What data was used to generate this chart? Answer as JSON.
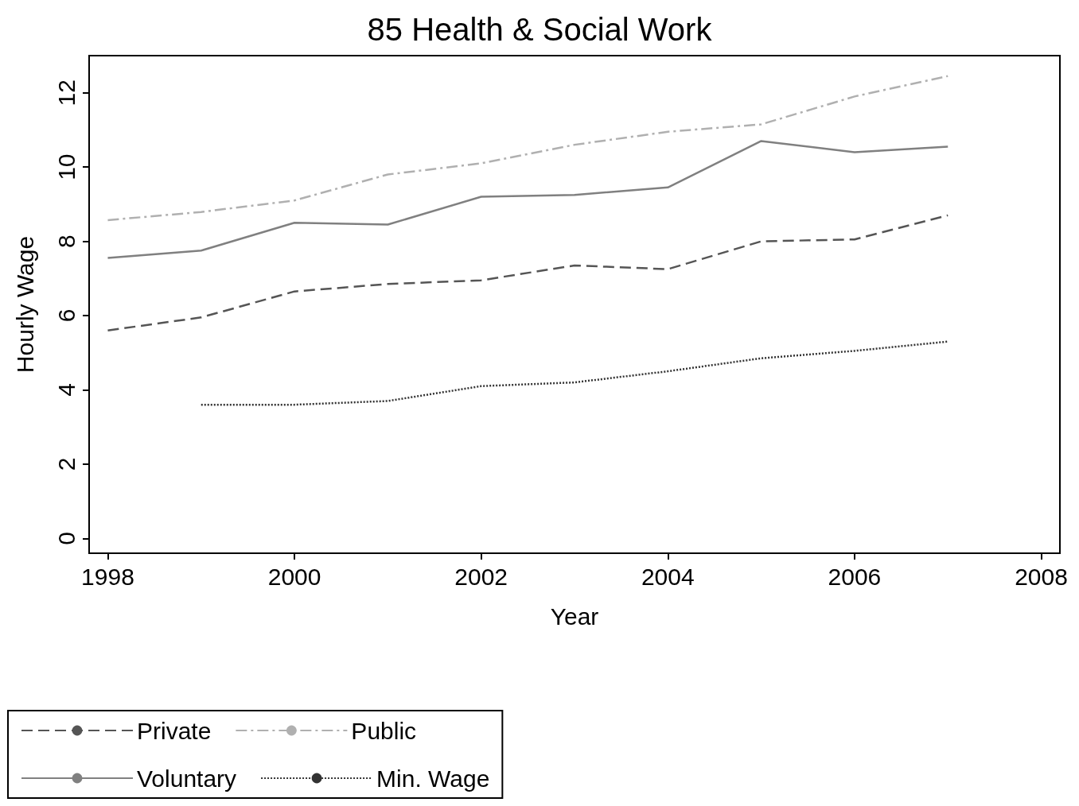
{
  "chart_data": {
    "type": "line",
    "title": "85 Health & Social Work",
    "xlabel": "Year",
    "ylabel": "Hourly Wage",
    "x": [
      1998,
      1999,
      2000,
      2001,
      2002,
      2003,
      2004,
      2005,
      2006,
      2007
    ],
    "xlim": [
      1997.8,
      2008.2
    ],
    "xticks": [
      1998,
      2000,
      2002,
      2004,
      2006,
      2008
    ],
    "ylim": [
      -0.4,
      13
    ],
    "yticks": [
      0,
      2,
      4,
      6,
      8,
      10,
      12
    ],
    "grid": false,
    "legend": "bottom left",
    "marker": "none",
    "series": [
      {
        "name": "Private",
        "color": "#555555",
        "line_style": "dashed",
        "values": [
          5.6,
          5.95,
          6.65,
          6.85,
          6.95,
          7.35,
          7.25,
          8.0,
          8.05,
          8.7
        ]
      },
      {
        "name": "Public",
        "color": "#b0b0b0",
        "line_style": "dashdot",
        "values": [
          8.57,
          8.79,
          9.1,
          9.8,
          10.1,
          10.6,
          10.95,
          11.15,
          11.9,
          12.45
        ]
      },
      {
        "name": "Voluntary",
        "color": "#808080",
        "line_style": "solid",
        "values": [
          7.55,
          7.75,
          8.5,
          8.45,
          9.2,
          9.25,
          9.45,
          10.7,
          10.4,
          10.55
        ]
      },
      {
        "name": "Min. Wage",
        "color": "#333333",
        "line_style": "dotted",
        "values": [
          null,
          3.6,
          3.6,
          3.7,
          4.1,
          4.2,
          4.5,
          4.85,
          5.05,
          5.3
        ]
      }
    ]
  }
}
